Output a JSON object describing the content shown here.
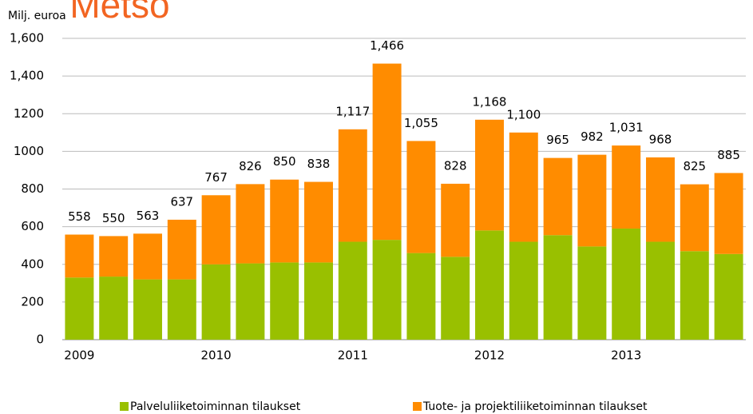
{
  "chart_data": {
    "type": "stacked_bar",
    "title": "Metso",
    "y_label": "Milj. euroa",
    "categories": [
      "2009",
      null,
      null,
      null,
      "2010",
      null,
      null,
      null,
      "2011",
      null,
      null,
      null,
      "2012",
      null,
      null,
      null,
      "2013",
      null,
      null,
      null
    ],
    "series": [
      {
        "name": "Palveluliiketoiminnan tilaukset",
        "color": "#99c000",
        "values": [
          330,
          335,
          320,
          320,
          400,
          405,
          410,
          410,
          520,
          530,
          460,
          440,
          580,
          520,
          555,
          495,
          590,
          520,
          470,
          455
        ]
      },
      {
        "name": "Tuote- ja projektiliiketoiminnan tilaukset",
        "color": "#ff8c00",
        "values": [
          228,
          215,
          243,
          317,
          367,
          421,
          440,
          428,
          597,
          936,
          595,
          388,
          588,
          580,
          410,
          487,
          441,
          448,
          355,
          430
        ]
      }
    ],
    "total_labels": [
      "558",
      "550",
      "563",
      "637",
      "767",
      "826",
      "850",
      "838",
      "1,117",
      "1,466",
      "1,055",
      "828",
      "1,168",
      "1,100",
      "965",
      "982",
      "1,031",
      "968",
      "825",
      "885"
    ],
    "ylim": [
      0,
      1600
    ],
    "yticks": [
      0,
      200,
      400,
      600,
      800,
      1000,
      1200,
      {
        "value": 1400,
        "label": "1,400"
      },
      {
        "value": 1600,
        "label": "1,600"
      }
    ],
    "grid": true,
    "legend": "bottom"
  }
}
